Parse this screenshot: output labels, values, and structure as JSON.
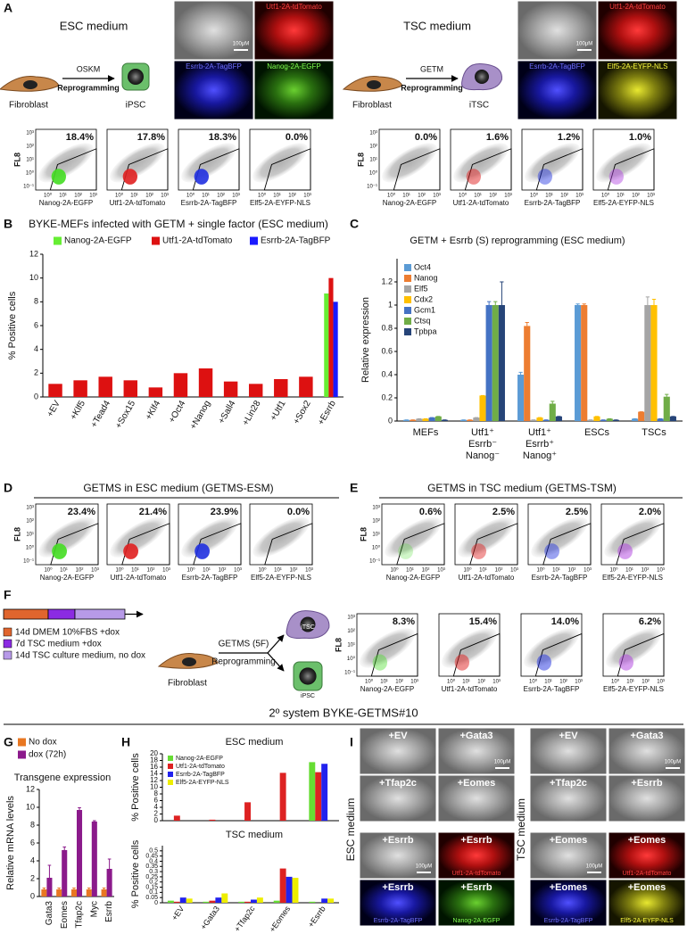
{
  "panel_a": {
    "letter": "A",
    "esc": {
      "medium": "ESC medium",
      "start_cell": "Fibroblast",
      "factors": "OSKM",
      "process": "Reprogramming",
      "result_cell": "iPSC",
      "image_labels": [
        "Utf1-2A-tdTomato",
        "Esrrb-2A-TagBFP",
        "Nanog-2A-EGFP"
      ],
      "scale_bar": "100μM"
    },
    "tsc": {
      "medium": "TSC medium",
      "start_cell": "Fibroblast",
      "factors": "GETM",
      "process": "Reprogramming",
      "result_cell": "iTSC",
      "image_labels": [
        "Utf1-2A-tdTomato",
        "Esrrb-2A-TagBFP",
        "Elf5-2A-EYFP-NLS"
      ],
      "scale_bar": "100μM"
    },
    "flow_esc": [
      "18.4%",
      "17.8%",
      "18.3%",
      "0.0%"
    ],
    "flow_tsc": [
      "0.0%",
      "1.6%",
      "1.2%",
      "1.0%"
    ]
  },
  "flow_axis": {
    "y_label": "FL8",
    "y_ticks": [
      "10³",
      "10²",
      "10¹",
      "10⁰",
      "10⁻¹"
    ],
    "x_ticks": [
      "10⁰",
      "10¹",
      "10²",
      "10³"
    ],
    "reporters": [
      "Nanog-2A-EGFP",
      "Utf1-2A-tdTomato",
      "Esrrb-2A-TagBFP",
      "Elf5-2A-EYFP-NLS"
    ]
  },
  "panel_b": {
    "letter": "B",
    "chart": {
      "type": "bar",
      "title": "BYKE-MEFs infected with GETM + single factor (ESC medium)",
      "y_label": "% Positive cells",
      "categories": [
        "+EV",
        "+Klf5",
        "+Tead4",
        "+Sox15",
        "+Klf4",
        "+Oct4",
        "+Nanog",
        "+Sall4",
        "+Lin28",
        "+Utf1",
        "+Sox2",
        "+Esrrb"
      ],
      "series": [
        {
          "name": "Nanog-2A-EGFP",
          "color": "#66ee33",
          "values": [
            null,
            null,
            null,
            null,
            null,
            null,
            null,
            null,
            null,
            null,
            null,
            8.7
          ]
        },
        {
          "name": "Utf1-2A-tdTomato",
          "color": "#dd1111",
          "values": [
            1.1,
            1.4,
            1.7,
            1.4,
            0.8,
            2.0,
            2.4,
            1.3,
            1.1,
            1.5,
            1.7,
            10.0
          ]
        },
        {
          "name": "Esrrb-2A-TagBFP",
          "color": "#1a1aff",
          "values": [
            null,
            null,
            null,
            null,
            null,
            null,
            null,
            null,
            null,
            null,
            null,
            8.0
          ]
        }
      ],
      "ylim": [
        0,
        12
      ],
      "yticks": [
        0,
        2,
        4,
        6,
        8,
        10,
        12
      ]
    }
  },
  "panel_c": {
    "letter": "C",
    "chart": {
      "type": "bar",
      "title": "GETM + Esrrb (S) reprogramming (ESC medium)",
      "y_label": "Relative expression",
      "categories": [
        [
          "MEFs"
        ],
        [
          "Utf1⁺",
          "Esrrb⁻",
          "Nanog⁻"
        ],
        [
          "Utf1⁺",
          "Esrrb⁺",
          "Nanog⁺"
        ],
        [
          "ESCs"
        ],
        [
          "TSCs"
        ]
      ],
      "series": [
        {
          "name": "Oct4",
          "color": "#5b9bd5",
          "values": [
            0.01,
            0.01,
            0.4,
            1.0,
            0.02
          ],
          "errors": [
            0,
            0,
            0.02,
            0.01,
            0
          ]
        },
        {
          "name": "Nanog",
          "color": "#ed7d31",
          "values": [
            0.01,
            0.01,
            0.82,
            1.0,
            0.08
          ],
          "errors": [
            0,
            0,
            0.03,
            0.01,
            0
          ]
        },
        {
          "name": "Elf5",
          "color": "#a5a5a5",
          "values": [
            0.02,
            0.03,
            0.01,
            0.01,
            1.0
          ],
          "errors": [
            0,
            0,
            0,
            0,
            0.07
          ]
        },
        {
          "name": "Cdx2",
          "color": "#ffc000",
          "values": [
            0.02,
            0.22,
            0.03,
            0.04,
            1.0
          ],
          "errors": [
            0,
            0,
            0,
            0,
            0.05
          ]
        },
        {
          "name": "Gcm1",
          "color": "#4472c4",
          "values": [
            0.03,
            1.0,
            0.01,
            0.01,
            0.02
          ],
          "errors": [
            0,
            0.03,
            0,
            0,
            0
          ]
        },
        {
          "name": "Ctsq",
          "color": "#70ad47",
          "values": [
            0.04,
            1.0,
            0.15,
            0.02,
            0.21
          ],
          "errors": [
            0,
            0.03,
            0.02,
            0,
            0.02
          ]
        },
        {
          "name": "Tpbpa",
          "color": "#264478",
          "values": [
            0.01,
            1.0,
            0.04,
            0.01,
            0.04
          ],
          "errors": [
            0,
            0.2,
            0,
            0,
            0
          ]
        }
      ],
      "ylim": [
        0,
        1.4
      ],
      "yticks": [
        0,
        0.2,
        0.4,
        0.6,
        0.8,
        1,
        1.2
      ]
    }
  },
  "panel_d": {
    "letter": "D",
    "title": "GETMS in ESC medium (GETMS-ESM)",
    "flow": [
      "23.4%",
      "21.4%",
      "23.9%",
      "0.0%"
    ]
  },
  "panel_e": {
    "letter": "E",
    "title": "GETMS in TSC medium (GETMS-TSM)",
    "flow": [
      "0.6%",
      "2.5%",
      "2.5%",
      "2.0%"
    ]
  },
  "panel_f": {
    "letter": "F",
    "timeline": [
      "14d DMEM 10%FBS +dox",
      "7d TSC medium +dox",
      "14d TSC culture medium, no dox"
    ],
    "start_cell": "Fibroblast",
    "factors": "GETMS (5F)",
    "process": "Reprogramming",
    "cells": [
      "iTSC",
      "iPSC"
    ],
    "flow": [
      "8.3%",
      "15.4%",
      "14.0%",
      "6.2%"
    ]
  },
  "system_title": "2º system BYKE-GETMS#10",
  "panel_g": {
    "letter": "G",
    "chart": {
      "type": "bar",
      "title": "Transgene expression",
      "y_label": "Relative mRNA levels",
      "categories": [
        "Gata3",
        "Eomes",
        "Tfap2c",
        "Myc",
        "Esrrb"
      ],
      "series": [
        {
          "name": "No dox",
          "color": "#e87722",
          "values": [
            0.8,
            0.8,
            0.8,
            0.8,
            0.8
          ],
          "errors": [
            0.15,
            0.15,
            0.15,
            0.15,
            0.15
          ]
        },
        {
          "name": "dox (72h)",
          "color": "#8b1a8b",
          "values": [
            2.1,
            5.2,
            9.7,
            8.4,
            3.1
          ],
          "errors": [
            1.4,
            0.35,
            0.25,
            0.1,
            1.1
          ]
        }
      ],
      "ylim": [
        0,
        12
      ],
      "yticks": [
        0,
        2,
        4,
        6,
        8,
        10,
        12
      ]
    }
  },
  "panel_h": {
    "letter": "H",
    "esc_chart": {
      "type": "bar",
      "title": "ESC medium",
      "y_label": "% Positive cells",
      "series": [
        {
          "name": "Nanog-2A-EGFP",
          "color": "#66dd33",
          "values": [
            0,
            0,
            0,
            0,
            17.5
          ]
        },
        {
          "name": "Utf1-2A-tdTomato",
          "color": "#dd2222",
          "values": [
            1.5,
            0.3,
            5.5,
            14.3,
            14.5
          ]
        },
        {
          "name": "Esrrb-2A-TagBFP",
          "color": "#2222ee",
          "values": [
            0,
            0,
            0,
            0,
            17
          ]
        },
        {
          "name": "Elf5-2A-EYFP-NLS",
          "color": "#eeee00",
          "values": [
            0,
            0,
            0,
            0,
            0
          ]
        }
      ],
      "ylim": [
        0,
        20
      ],
      "yticks": [
        0,
        2,
        4,
        6,
        8,
        10,
        12,
        14,
        16,
        18,
        20
      ]
    },
    "tsc_chart": {
      "type": "bar",
      "title": "TSC medium",
      "y_label": "% Positive cells",
      "categories": [
        "+EV",
        "+Gata3",
        "+Tfap2c",
        "+Eomes",
        "+Esrrb"
      ],
      "series": [
        {
          "color": "#66dd33",
          "values": [
            0.02,
            0.01,
            0.01,
            0.02,
            0.01
          ]
        },
        {
          "color": "#dd2222",
          "values": [
            0.01,
            0.02,
            0.01,
            0.33,
            0.0
          ]
        },
        {
          "color": "#2222ee",
          "values": [
            0.05,
            0.05,
            0.03,
            0.25,
            0.04
          ]
        },
        {
          "color": "#eeee00",
          "values": [
            0.04,
            0.09,
            0.05,
            0.24,
            0.04
          ]
        }
      ],
      "ylim": [
        0,
        0.55
      ],
      "yticks": [
        0,
        0.05,
        0.1,
        0.15,
        0.2,
        0.25,
        0.3,
        0.35,
        0.4,
        0.45,
        0.5
      ]
    }
  },
  "panel_i": {
    "letter": "I",
    "scale_bar": "100μM",
    "esc": {
      "side_label": "ESC medium",
      "tiles": [
        "+EV",
        "+Gata3",
        "+Tfap2c",
        "+Eomes",
        "+Esrrb",
        "+Esrrb",
        "+Esrrb",
        "+Esrrb"
      ],
      "markers": [
        "Utf1-2A-tdTomato",
        "Esrrb-2A-TagBFP",
        "Nanog-2A-EGFP"
      ]
    },
    "tsc": {
      "side_label": "TSC medium",
      "tiles": [
        "+EV",
        "+Gata3",
        "+Tfap2c",
        "+Esrrb",
        "+Eomes",
        "+Eomes",
        "+Eomes",
        "+Eomes"
      ],
      "markers": [
        "Utf1-2A-tdTomato",
        "Esrrb-2A-TagBFP",
        "Elf5-2A-EYFP-NLS"
      ]
    }
  }
}
